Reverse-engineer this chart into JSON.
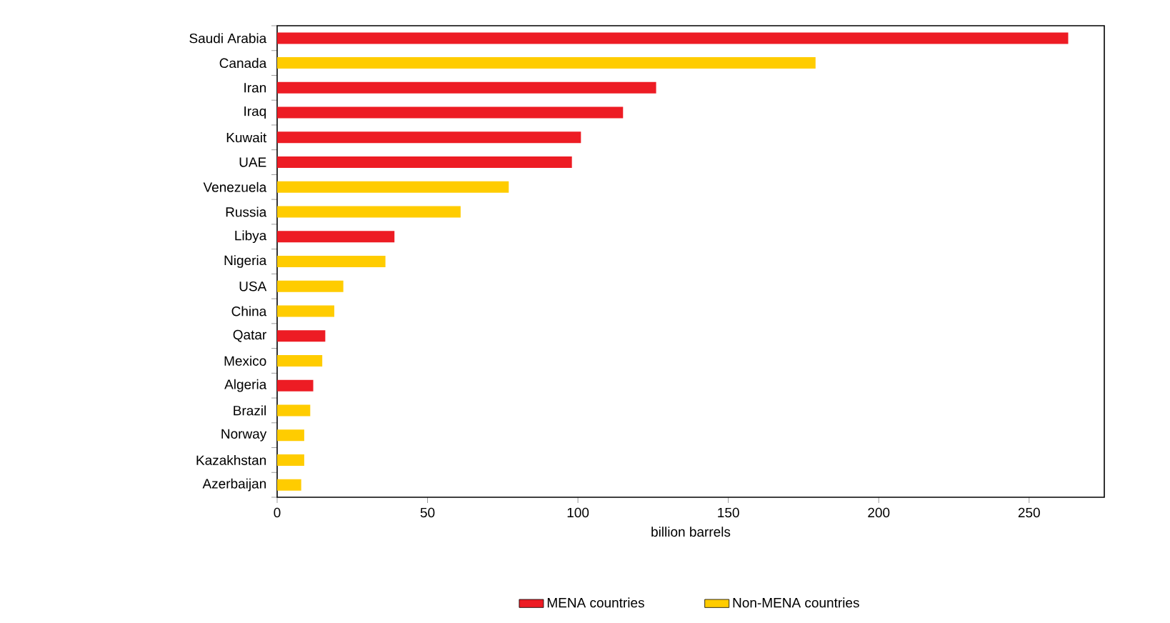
{
  "chart_data": {
    "type": "bar",
    "orientation": "horizontal",
    "xlabel": "billion barrels",
    "categories": [
      "Saudi Arabia",
      "Canada",
      "Iran",
      "Iraq",
      "Kuwait",
      "UAE",
      "Venezuela",
      "Russia",
      "Libya",
      "Nigeria",
      "USA",
      "China",
      "Qatar",
      "Mexico",
      "Algeria",
      "Brazil",
      "Norway",
      "Kazakhstan",
      "Azerbaijan"
    ],
    "series": [
      {
        "name": "MENA countries",
        "color": "#ed1c24",
        "values": [
          263,
          null,
          126,
          115,
          101,
          98,
          null,
          null,
          39,
          null,
          null,
          null,
          16,
          null,
          12,
          null,
          null,
          null,
          null
        ]
      },
      {
        "name": "Non-MENA countries",
        "color": "#ffcc00",
        "values": [
          null,
          179,
          null,
          null,
          null,
          null,
          77,
          61,
          null,
          36,
          22,
          19,
          null,
          15,
          null,
          11,
          9,
          9,
          8
        ]
      }
    ],
    "xlim": [
      0,
      275
    ],
    "xticks": [
      0,
      50,
      100,
      150,
      200,
      250
    ],
    "legend": "bottom",
    "grid": false
  }
}
